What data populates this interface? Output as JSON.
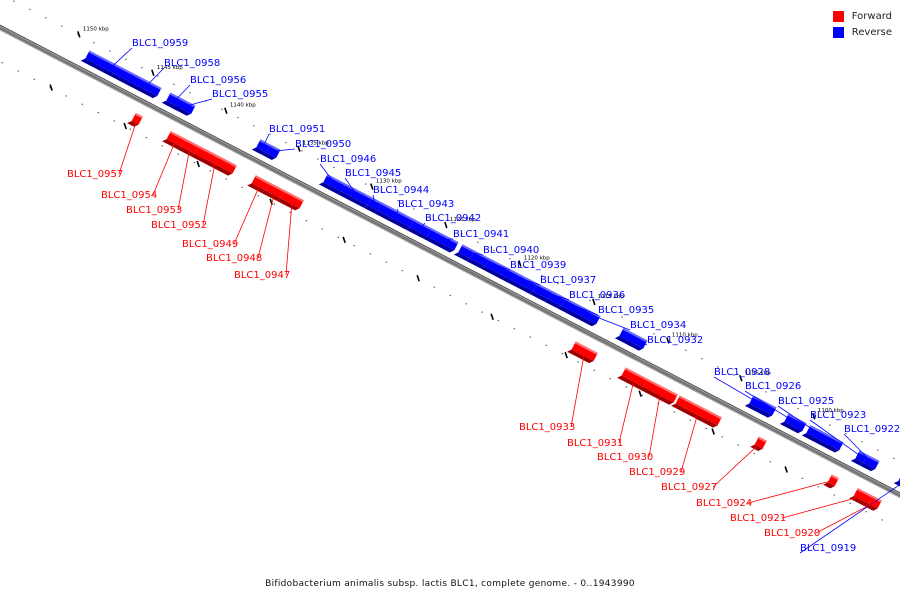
{
  "legend": {
    "forward_label": "Forward",
    "reverse_label": "Reverse",
    "forward_color": "#ff0000",
    "reverse_color": "#0000ff"
  },
  "caption": "Bifidobacterium animalis subsp. lactis BLC1, complete genome. - 0..1943990",
  "ticks": [
    {
      "kbp": 1150,
      "label": "1150 kbp"
    },
    {
      "kbp": 1145,
      "label": "1145 kbp"
    },
    {
      "kbp": 1140,
      "label": "1140 kbp"
    },
    {
      "kbp": 1135,
      "label": "1135 kbp"
    },
    {
      "kbp": 1130,
      "label": "1130 kbp"
    },
    {
      "kbp": 1125,
      "label": "1125 kbp"
    },
    {
      "kbp": 1120,
      "label": "1120 kbp"
    },
    {
      "kbp": 1115,
      "label": "1115 kbp"
    },
    {
      "kbp": 1110,
      "label": "1110 kbp"
    },
    {
      "kbp": 1105,
      "label": "1105 kbp"
    },
    {
      "kbp": 1100,
      "label": "1100 kbp"
    }
  ],
  "genes": [
    {
      "name": "BLC1_0959",
      "strand": "reverse"
    },
    {
      "name": "BLC1_0958",
      "strand": "reverse"
    },
    {
      "name": "BLC1_0956",
      "strand": "reverse"
    },
    {
      "name": "BLC1_0955",
      "strand": "reverse"
    },
    {
      "name": "BLC1_0951",
      "strand": "reverse"
    },
    {
      "name": "BLC1_0950",
      "strand": "reverse"
    },
    {
      "name": "BLC1_0946",
      "strand": "reverse"
    },
    {
      "name": "BLC1_0945",
      "strand": "reverse"
    },
    {
      "name": "BLC1_0944",
      "strand": "reverse"
    },
    {
      "name": "BLC1_0943",
      "strand": "reverse"
    },
    {
      "name": "BLC1_0942",
      "strand": "reverse"
    },
    {
      "name": "BLC1_0941",
      "strand": "reverse"
    },
    {
      "name": "BLC1_0940",
      "strand": "reverse"
    },
    {
      "name": "BLC1_0939",
      "strand": "reverse"
    },
    {
      "name": "BLC1_0937",
      "strand": "reverse"
    },
    {
      "name": "BLC1_0936",
      "strand": "reverse"
    },
    {
      "name": "BLC1_0935",
      "strand": "reverse"
    },
    {
      "name": "BLC1_0934",
      "strand": "reverse"
    },
    {
      "name": "BLC1_0932",
      "strand": "reverse"
    },
    {
      "name": "BLC1_0928",
      "strand": "reverse"
    },
    {
      "name": "BLC1_0926",
      "strand": "reverse"
    },
    {
      "name": "BLC1_0925",
      "strand": "reverse"
    },
    {
      "name": "BLC1_0923",
      "strand": "reverse"
    },
    {
      "name": "BLC1_0922",
      "strand": "reverse"
    },
    {
      "name": "BLC1_0919",
      "strand": "reverse"
    },
    {
      "name": "BLC1_0957",
      "strand": "forward"
    },
    {
      "name": "BLC1_0954",
      "strand": "forward"
    },
    {
      "name": "BLC1_0953",
      "strand": "forward"
    },
    {
      "name": "BLC1_0952",
      "strand": "forward"
    },
    {
      "name": "BLC1_0949",
      "strand": "forward"
    },
    {
      "name": "BLC1_0948",
      "strand": "forward"
    },
    {
      "name": "BLC1_0947",
      "strand": "forward"
    },
    {
      "name": "BLC1_0933",
      "strand": "forward"
    },
    {
      "name": "BLC1_0931",
      "strand": "forward"
    },
    {
      "name": "BLC1_0930",
      "strand": "forward"
    },
    {
      "name": "BLC1_0929",
      "strand": "forward"
    },
    {
      "name": "BLC1_0927",
      "strand": "forward"
    },
    {
      "name": "BLC1_0924",
      "strand": "forward"
    },
    {
      "name": "BLC1_0921",
      "strand": "forward"
    },
    {
      "name": "BLC1_0920",
      "strand": "forward"
    }
  ]
}
